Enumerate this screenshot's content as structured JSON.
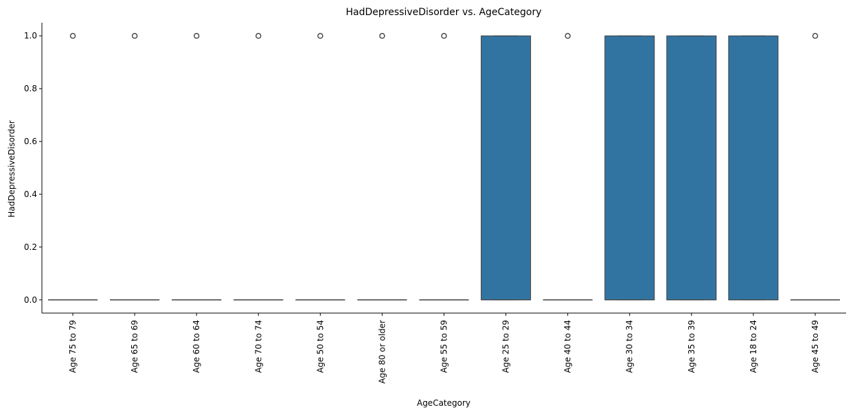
{
  "chart_data": {
    "type": "box",
    "title": "HadDepressiveDisorder vs. AgeCategory",
    "xlabel": "AgeCategory",
    "ylabel": "HadDepressiveDisorder",
    "ylim": [
      -0.05,
      1.05
    ],
    "yticks": [
      0.0,
      0.2,
      0.4,
      0.6,
      0.8,
      1.0
    ],
    "ytick_labels": [
      "0.0",
      "0.2",
      "0.4",
      "0.6",
      "0.8",
      "1.0"
    ],
    "grid": false,
    "legend": "none",
    "box_color": "#3274a1",
    "line_color": "#404040",
    "categories": [
      "Age 75 to 79",
      "Age 65 to 69",
      "Age 60 to 64",
      "Age 70 to 74",
      "Age 50 to 54",
      "Age 80 or older",
      "Age 55 to 59",
      "Age 25 to 29",
      "Age 40 to 44",
      "Age 30 to 34",
      "Age 35 to 39",
      "Age 18 to 24",
      "Age 45 to 49"
    ],
    "boxes": [
      {
        "q1": 0,
        "median": 0,
        "q3": 0,
        "whisker_low": 0,
        "whisker_high": 0,
        "outliers": [
          1
        ]
      },
      {
        "q1": 0,
        "median": 0,
        "q3": 0,
        "whisker_low": 0,
        "whisker_high": 0,
        "outliers": [
          1
        ]
      },
      {
        "q1": 0,
        "median": 0,
        "q3": 0,
        "whisker_low": 0,
        "whisker_high": 0,
        "outliers": [
          1
        ]
      },
      {
        "q1": 0,
        "median": 0,
        "q3": 0,
        "whisker_low": 0,
        "whisker_high": 0,
        "outliers": [
          1
        ]
      },
      {
        "q1": 0,
        "median": 0,
        "q3": 0,
        "whisker_low": 0,
        "whisker_high": 0,
        "outliers": [
          1
        ]
      },
      {
        "q1": 0,
        "median": 0,
        "q3": 0,
        "whisker_low": 0,
        "whisker_high": 0,
        "outliers": [
          1
        ]
      },
      {
        "q1": 0,
        "median": 0,
        "q3": 0,
        "whisker_low": 0,
        "whisker_high": 0,
        "outliers": [
          1
        ]
      },
      {
        "q1": 0,
        "median": 0,
        "q3": 1,
        "whisker_low": 0,
        "whisker_high": 1,
        "outliers": []
      },
      {
        "q1": 0,
        "median": 0,
        "q3": 0,
        "whisker_low": 0,
        "whisker_high": 0,
        "outliers": [
          1
        ]
      },
      {
        "q1": 0,
        "median": 0,
        "q3": 1,
        "whisker_low": 0,
        "whisker_high": 1,
        "outliers": []
      },
      {
        "q1": 0,
        "median": 0,
        "q3": 1,
        "whisker_low": 0,
        "whisker_high": 1,
        "outliers": []
      },
      {
        "q1": 0,
        "median": 0,
        "q3": 1,
        "whisker_low": 0,
        "whisker_high": 1,
        "outliers": []
      },
      {
        "q1": 0,
        "median": 0,
        "q3": 0,
        "whisker_low": 0,
        "whisker_high": 0,
        "outliers": [
          1
        ]
      }
    ]
  }
}
